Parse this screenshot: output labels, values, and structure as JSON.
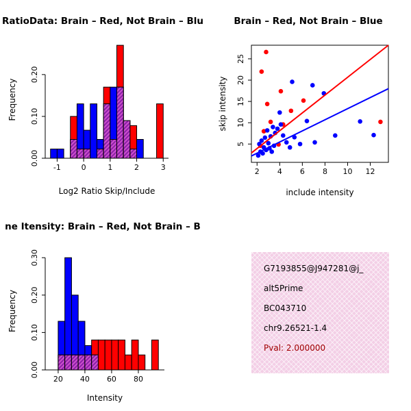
{
  "colors": {
    "red": "#ff0000",
    "blue": "#0000ff",
    "overlap_bg": "#cc50cc",
    "overlap_stripe": "#8b1fa8",
    "axis": "#000000"
  },
  "chart_data": [
    {
      "id": "hist-ratio",
      "type": "bar",
      "variant": "overlaid-histogram",
      "title": "RatioData: Brain – Red, Not Brain – Blu",
      "xlabel": "Log2 Ratio Skip/Include",
      "ylabel": "Frequency",
      "xlim": [
        -1.45,
        3.2
      ],
      "ylim": [
        0,
        0.28
      ],
      "bin_width": 0.25,
      "grid": false,
      "series_note": "red = Brain, blue = Not Brain, hatched purple = overlap",
      "xticks": [
        {
          "v": -1,
          "label": "-1"
        },
        {
          "v": 0,
          "label": "0"
        },
        {
          "v": 1,
          "label": "1"
        },
        {
          "v": 2,
          "label": "2"
        },
        {
          "v": 3,
          "label": "3"
        }
      ],
      "yticks": [
        {
          "v": 0,
          "label": "0.00"
        },
        {
          "v": 0.1,
          "label": "0.10"
        },
        {
          "v": 0.2,
          "label": "0.20"
        }
      ],
      "bins": [
        {
          "x0": -1.25,
          "blue": 0.022,
          "red": 0
        },
        {
          "x0": -1.0,
          "blue": 0.022,
          "red": 0
        },
        {
          "x0": -0.5,
          "blue": 0.045,
          "red": 0.1
        },
        {
          "x0": -0.25,
          "blue": 0.13,
          "red": 0.022
        },
        {
          "x0": 0.0,
          "blue": 0.067,
          "red": 0.022
        },
        {
          "x0": 0.25,
          "blue": 0.13,
          "red": 0
        },
        {
          "x0": 0.5,
          "blue": 0.045,
          "red": 0.022
        },
        {
          "x0": 0.75,
          "blue": 0.13,
          "red": 0.17
        },
        {
          "x0": 1.0,
          "blue": 0.17,
          "red": 0.045
        },
        {
          "x0": 1.25,
          "blue": 0.17,
          "red": 0.27
        },
        {
          "x0": 1.5,
          "blue": 0.09,
          "red": 0.09
        },
        {
          "x0": 1.75,
          "blue": 0.022,
          "red": 0.078
        },
        {
          "x0": 2.0,
          "blue": 0.045,
          "red": 0
        },
        {
          "x0": 2.75,
          "blue": 0,
          "red": 0.13
        }
      ]
    },
    {
      "id": "scatter",
      "type": "scatter",
      "title": "Brain – Red, Not Brain – Blue",
      "xlabel": "include intensity",
      "ylabel": "skip intensity",
      "xlim": [
        1.5,
        13.6
      ],
      "ylim": [
        0.7,
        28.2
      ],
      "box": true,
      "grid": false,
      "xticks": [
        {
          "v": 2,
          "label": "2"
        },
        {
          "v": 4,
          "label": "4"
        },
        {
          "v": 6,
          "label": "6"
        },
        {
          "v": 8,
          "label": "8"
        },
        {
          "v": 10,
          "label": "10"
        },
        {
          "v": 12,
          "label": "12"
        }
      ],
      "yticks": [
        {
          "v": 5,
          "label": "5"
        },
        {
          "v": 10,
          "label": "10"
        },
        {
          "v": 15,
          "label": "15"
        },
        {
          "v": 20,
          "label": "20"
        },
        {
          "v": 25,
          "label": "25"
        }
      ],
      "series": [
        {
          "name": "Brain",
          "color_key": "red",
          "points": [
            [
              2.8,
              26.6
            ],
            [
              2.4,
              22.0
            ],
            [
              4.1,
              17.4
            ],
            [
              2.9,
              14.4
            ],
            [
              6.1,
              15.2
            ],
            [
              3.2,
              10.2
            ],
            [
              4.3,
              9.6
            ],
            [
              12.9,
              10.2
            ],
            [
              2.6,
              8.0
            ],
            [
              2.3,
              4.6
            ],
            [
              3.9,
              4.9
            ],
            [
              5.0,
              12.8
            ]
          ],
          "fit_line": {
            "x1": 1.5,
            "y1": 2.9,
            "x2": 13.6,
            "y2": 28.2
          }
        },
        {
          "name": "Not Brain",
          "color_key": "blue",
          "points": [
            [
              2.1,
              2.3
            ],
            [
              2.3,
              3.2
            ],
            [
              2.5,
              2.8
            ],
            [
              2.6,
              4.2
            ],
            [
              2.8,
              3.6
            ],
            [
              2.2,
              5.0
            ],
            [
              2.4,
              5.8
            ],
            [
              2.7,
              6.5
            ],
            [
              3.0,
              5.2
            ],
            [
              3.1,
              4.0
            ],
            [
              3.3,
              3.2
            ],
            [
              3.5,
              4.6
            ],
            [
              3.2,
              6.8
            ],
            [
              3.6,
              7.6
            ],
            [
              2.9,
              8.2
            ],
            [
              3.4,
              9.0
            ],
            [
              3.8,
              8.6
            ],
            [
              4.1,
              9.6
            ],
            [
              4.3,
              7.0
            ],
            [
              4.6,
              5.4
            ],
            [
              4.9,
              4.2
            ],
            [
              5.3,
              6.6
            ],
            [
              5.8,
              5.0
            ],
            [
              6.4,
              10.4
            ],
            [
              5.1,
              19.6
            ],
            [
              6.9,
              18.8
            ],
            [
              7.9,
              16.9
            ],
            [
              8.9,
              7.0
            ],
            [
              11.1,
              10.3
            ],
            [
              12.3,
              7.1
            ],
            [
              7.1,
              5.4
            ],
            [
              4.0,
              12.4
            ]
          ],
          "fit_line": {
            "x1": 1.5,
            "y1": 2.2,
            "x2": 13.6,
            "y2": 18.0
          }
        }
      ]
    },
    {
      "id": "hist-intensity",
      "type": "bar",
      "variant": "overlaid-histogram",
      "title": "ne Itensity: Brain – Red, Not Brain – B",
      "xlabel": "Intensity",
      "ylabel": "Frequency",
      "xlim": [
        10.3,
        99.5
      ],
      "ylim": [
        0,
        0.315
      ],
      "bin_width": 5,
      "grid": false,
      "series_note": "blue = Not Brain (low intensity), red = Brain (high intensity)",
      "xticks": [
        {
          "v": 20,
          "label": "20"
        },
        {
          "v": 40,
          "label": "40"
        },
        {
          "v": 60,
          "label": "60"
        },
        {
          "v": 80,
          "label": "80"
        }
      ],
      "yticks": [
        {
          "v": 0,
          "label": "0.00"
        },
        {
          "v": 0.1,
          "label": "0.10"
        },
        {
          "v": 0.2,
          "label": "0.20"
        },
        {
          "v": 0.3,
          "label": "0.30"
        }
      ],
      "bins": [
        {
          "x0": 20,
          "blue": 0.13,
          "red": 0.04
        },
        {
          "x0": 25,
          "blue": 0.3,
          "red": 0.04
        },
        {
          "x0": 30,
          "blue": 0.2,
          "red": 0.04
        },
        {
          "x0": 35,
          "blue": 0.13,
          "red": 0.04
        },
        {
          "x0": 40,
          "blue": 0.065,
          "red": 0.04
        },
        {
          "x0": 45,
          "blue": 0.04,
          "red": 0.08
        },
        {
          "x0": 50,
          "blue": 0,
          "red": 0.08
        },
        {
          "x0": 55,
          "blue": 0,
          "red": 0.08
        },
        {
          "x0": 60,
          "blue": 0,
          "red": 0.08
        },
        {
          "x0": 65,
          "blue": 0,
          "red": 0.08
        },
        {
          "x0": 70,
          "blue": 0,
          "red": 0.04
        },
        {
          "x0": 75,
          "blue": 0,
          "red": 0.08
        },
        {
          "x0": 80,
          "blue": 0,
          "red": 0.04
        },
        {
          "x0": 90,
          "blue": 0,
          "red": 0.08
        }
      ]
    }
  ],
  "info_box": {
    "lines": [
      "G7193855@J947281@j_",
      "alt5Prime",
      "BC043710",
      "chr9.26521-1.4"
    ],
    "pval": "Pval: 2.000000",
    "pval_color": "#a00000",
    "background": "#f3cfe6",
    "hatch_color": "#ffffff"
  }
}
